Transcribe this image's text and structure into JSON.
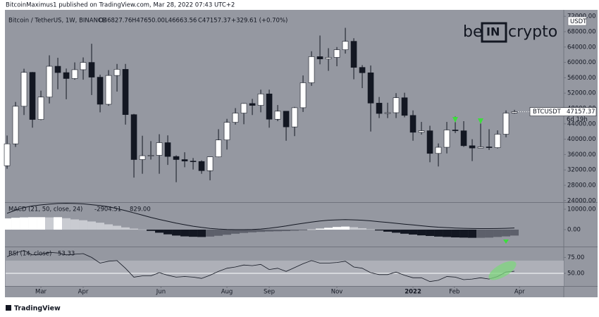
{
  "publisher_note": "BitcoinMaximus1 published on TradingView.com, Mar 28, 2022 07:43 UTC+2",
  "footer": "TradingView",
  "chart_data": {
    "type": "candlestick",
    "title": "Bitcoin / TetherUS, 1W, BINANCE",
    "ohlc_header": [
      "O46827.76",
      "H47650.00",
      "L46663.56",
      "C47157.37",
      "+329.61 (+0.70%)"
    ],
    "currency": "USDT",
    "watermark": [
      "be",
      "IN",
      "crypto"
    ],
    "price_label_symbol": "BTCUSDT",
    "countdown": "6d 19h",
    "up_color": "#ffffff",
    "down_color": "#131722",
    "background": "#9598a1",
    "grid": false,
    "xlim": [
      -0.17,
      65.83
    ],
    "xticks": [
      {
        "value": 4,
        "label": "Mar"
      },
      {
        "value": 9,
        "label": "Apr"
      },
      {
        "value": 18.2,
        "label": "Jun"
      },
      {
        "value": 26,
        "label": "Aug"
      },
      {
        "value": 31,
        "label": "Sep"
      },
      {
        "value": 39,
        "label": "Nov"
      },
      {
        "value": 48,
        "label": "2022"
      },
      {
        "value": 52.9,
        "label": "Feb"
      },
      {
        "value": 60.6,
        "label": "Apr"
      }
    ],
    "ylim": [
      23600,
      73500
    ],
    "yticks": [
      {
        "value": 24000,
        "label": "24000.00"
      },
      {
        "value": 28000,
        "label": "28000.00"
      },
      {
        "value": 32000,
        "label": "32000.00"
      },
      {
        "value": 36000,
        "label": "36000.00"
      },
      {
        "value": 40000,
        "label": "40000.00"
      },
      {
        "value": 44000,
        "label": "44000.00"
      },
      {
        "value": 48000,
        "label": "48000.00"
      },
      {
        "value": 52000,
        "label": "52000.00"
      },
      {
        "value": 56000,
        "label": "56000.00"
      },
      {
        "value": 60000,
        "label": "60000.00"
      },
      {
        "value": 64000,
        "label": "64000.00"
      },
      {
        "value": 68000,
        "label": "68000.00"
      },
      {
        "value": 72000,
        "label": "72000.00"
      }
    ],
    "open": [
      33092,
      38795,
      48577,
      57408,
      45135,
      50971,
      59000,
      57350,
      55800,
      58100,
      60000,
      56150,
      49100,
      56600,
      58200,
      46400,
      34700,
      35700,
      35800,
      39100,
      35500,
      34700,
      34300,
      34200,
      31800,
      35400,
      39800,
      44400,
      46800,
      49300,
      48800,
      51800,
      45200,
      47300,
      43200,
      48200,
      54700,
      61500,
      60900,
      61300,
      63300,
      65500,
      58700,
      57300,
      49400,
      46700,
      46900,
      50800,
      46200,
      41800,
      42200,
      36300,
      37900,
      42400,
      42200,
      38300,
      37700,
      38000,
      37800,
      41300,
      46827.76
    ],
    "high": [
      40955,
      49707,
      58352,
      57500,
      52640,
      61844,
      61200,
      58400,
      60000,
      61300,
      64854,
      56800,
      58000,
      59600,
      59600,
      46600,
      40900,
      39500,
      41300,
      41000,
      35800,
      36600,
      35100,
      34500,
      35400,
      42600,
      45300,
      48100,
      49400,
      50500,
      52900,
      52900,
      48900,
      47300,
      48400,
      56600,
      62900,
      67000,
      63700,
      64000,
      69000,
      66300,
      59300,
      59200,
      51000,
      49500,
      52000,
      52100,
      47500,
      44500,
      43500,
      38900,
      44500,
      45900,
      44700,
      40000,
      45400,
      42600,
      42300,
      47500,
      47650
    ],
    "low": [
      32296,
      37988,
      46300,
      43000,
      44950,
      49300,
      53000,
      50400,
      55500,
      55500,
      51500,
      47000,
      48700,
      52400,
      43800,
      30000,
      31000,
      34700,
      31000,
      33300,
      28800,
      32700,
      32100,
      31000,
      29300,
      35300,
      37300,
      43800,
      43900,
      46300,
      47000,
      43000,
      44700,
      39600,
      40800,
      47100,
      53900,
      59500,
      57800,
      59000,
      62300,
      55600,
      53300,
      42000,
      45500,
      45500,
      45500,
      45700,
      39600,
      41200,
      34000,
      32900,
      36300,
      41600,
      38000,
      34300,
      37700,
      37200,
      37600,
      40500,
      46663.56
    ],
    "close": [
      38795,
      48577,
      57408,
      45135,
      50971,
      59000,
      57350,
      55800,
      58100,
      60000,
      56150,
      49100,
      56600,
      58200,
      46400,
      34700,
      35700,
      35800,
      39100,
      35500,
      34700,
      34300,
      34200,
      31800,
      35400,
      39800,
      44400,
      46800,
      49300,
      48800,
      51800,
      45200,
      47300,
      43200,
      48200,
      54700,
      61500,
      60900,
      61300,
      63300,
      65500,
      58700,
      57300,
      49400,
      46700,
      46900,
      50800,
      46200,
      41800,
      42200,
      36300,
      37900,
      42400,
      42200,
      38300,
      37700,
      38000,
      37800,
      41300,
      46800,
      47157.37
    ],
    "indicators": [
      {
        "type": "macd",
        "title": "MACD (21, 50, close, 24)",
        "readouts": [
          "-2904.51",
          "829.00"
        ],
        "ylim": [
          -8280,
          13100
        ],
        "yticks": [
          {
            "value": 10000,
            "label": "10000.00"
          },
          {
            "value": 0,
            "label": "0.00"
          }
        ],
        "line_color": "#131722",
        "histogram_colors": {
          "rising_above": "#ffffff",
          "falling_above": "#c9cbd1",
          "falling_below": "#131722",
          "rising_below": "#5d606b"
        },
        "histogram": [
          5500,
          5800,
          6000,
          6100,
          6100,
          6000,
          6100,
          5600,
          5000,
          4600,
          4000,
          3400,
          2600,
          1900,
          1100,
          500,
          100,
          -600,
          -1500,
          -2300,
          -2900,
          -3300,
          -3500,
          -3600,
          -3400,
          -3000,
          -2500,
          -2000,
          -1600,
          -1300,
          -1100,
          -900,
          -800,
          -700,
          -500,
          -300,
          100,
          500,
          900,
          1300,
          1500,
          1200,
          700,
          200,
          -400,
          -1000,
          -1500,
          -2000,
          -2400,
          -2800,
          -3100,
          -3400,
          -3600,
          -3800,
          -3900,
          -4000,
          -4000,
          -3900,
          -3600,
          -3300,
          -2904.51
        ],
        "line": [
          8000,
          9500,
          10800,
          11600,
          12100,
          12500,
          12800,
          12900,
          12800,
          12600,
          12200,
          11800,
          11200,
          10300,
          9300,
          8200,
          7100,
          6000,
          5000,
          4100,
          3200,
          2400,
          1700,
          1100,
          600,
          300,
          100,
          0,
          0,
          100,
          300,
          700,
          1200,
          1800,
          2500,
          3100,
          3700,
          4200,
          4600,
          4800,
          4900,
          4800,
          4600,
          4300,
          3900,
          3500,
          3100,
          2700,
          2300,
          1900,
          1500,
          1200,
          1000,
          800,
          650,
          550,
          500,
          500,
          550,
          650,
          829
        ]
      },
      {
        "type": "line",
        "title": "RSI (14, close)",
        "readouts": [
          "53.33"
        ],
        "ylim": [
          30,
          91
        ],
        "yticks": [
          {
            "value": 75,
            "label": "75.00"
          },
          {
            "value": 50,
            "label": "50.00"
          }
        ],
        "band": [
          30,
          70
        ],
        "band_color": "#aeb0b8",
        "midline": 50,
        "line_color": "#131722",
        "values": [
          76,
          82,
          86,
          79,
          80,
          83,
          82,
          79,
          80,
          81,
          75,
          66,
          69,
          70,
          58,
          44,
          46,
          46,
          51,
          47,
          44,
          45,
          44,
          42,
          47,
          53,
          58,
          60,
          63,
          62,
          64,
          56,
          58,
          53,
          59,
          65,
          70,
          66,
          66,
          67,
          69,
          60,
          58,
          51,
          48,
          48,
          52,
          47,
          43,
          43,
          37,
          39,
          45,
          44,
          40,
          41,
          43,
          41,
          45,
          52,
          53.33
        ]
      }
    ]
  }
}
